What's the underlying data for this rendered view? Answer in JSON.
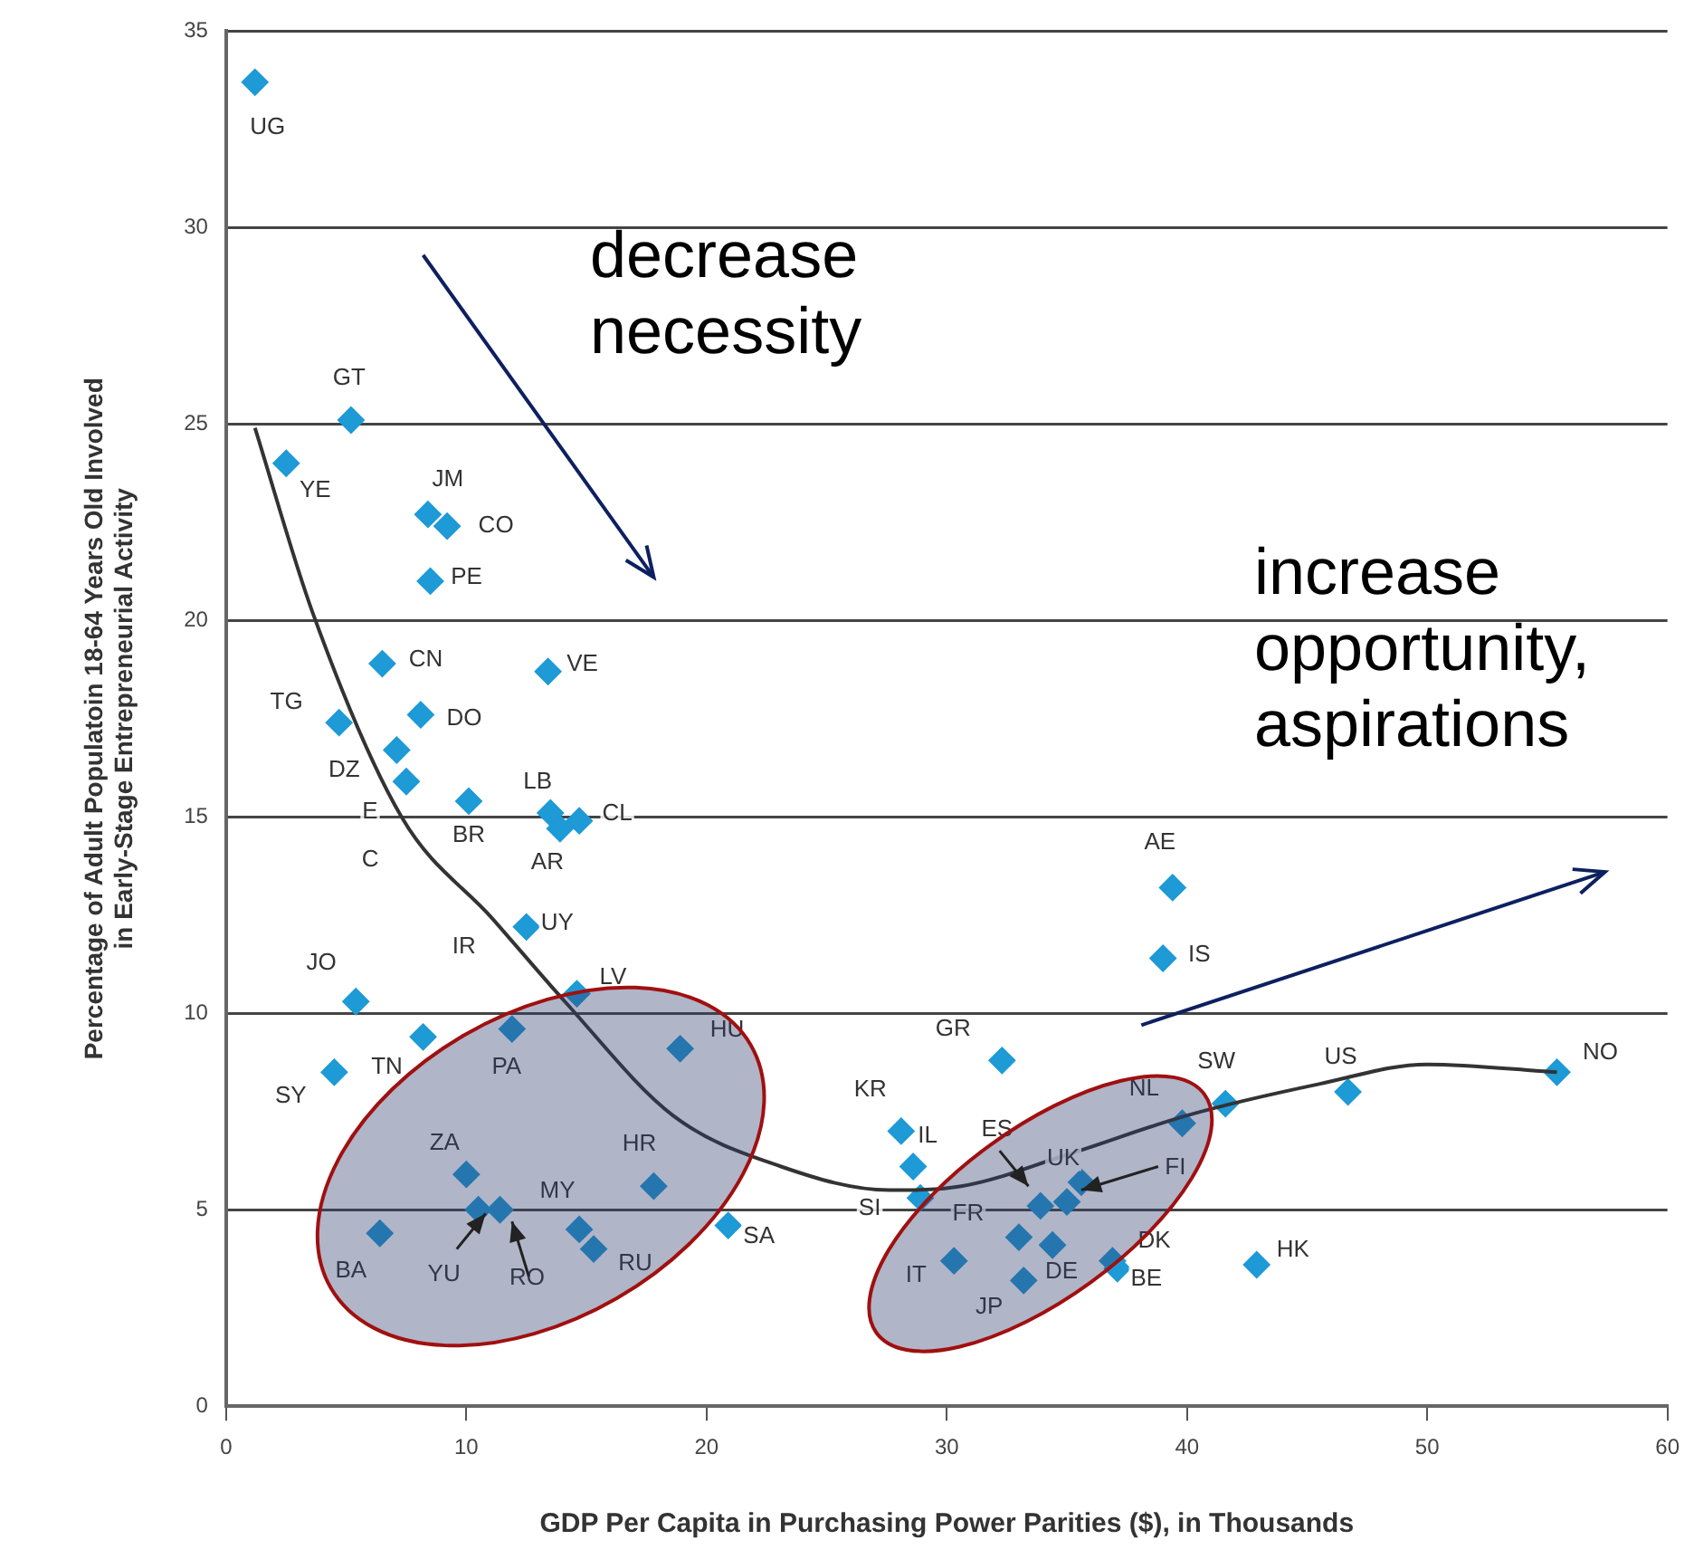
{
  "chart_data": {
    "type": "scatter",
    "xlabel": "GDP Per Capita in Purchasing Power Parities ($), in Thousands",
    "ylabel": "Percentage of Adult Populatoin 18-64 Years Old Involved in Early-Stage Entrepreneurial Activity",
    "xlim": [
      0,
      60
    ],
    "xticks": [
      0,
      10,
      20,
      30,
      40,
      50,
      60
    ],
    "ylim": [
      0,
      35
    ],
    "yticks": [
      0,
      5,
      10,
      15,
      20,
      25,
      30,
      35
    ],
    "grid": "y",
    "marker": "diamond",
    "series": [
      {
        "type": "scatter",
        "color": "#1e9ad6",
        "x": [
          1.2,
          5.2,
          2.5,
          8.4,
          9.2,
          8.5,
          6.5,
          13.4,
          4.7,
          8.1,
          7.1,
          7.5,
          10.1,
          13.5,
          13.9,
          14.7,
          12.5,
          14.6,
          5.4,
          8.2,
          11.9,
          18.9,
          4.5,
          10.0,
          10.5,
          11.4,
          6.4,
          14.7,
          15.3,
          17.8,
          20.9,
          39.4,
          39.0,
          32.3,
          28.1,
          28.6,
          28.9,
          39.8,
          41.6,
          46.7,
          55.4,
          33.9,
          35.0,
          35.6,
          33.0,
          34.4,
          30.3,
          33.2,
          36.9,
          37.1,
          42.9
        ],
        "values": [
          33.7,
          25.1,
          24.0,
          22.7,
          22.4,
          21.0,
          18.9,
          18.7,
          17.4,
          17.6,
          16.7,
          15.9,
          15.4,
          15.1,
          14.7,
          14.9,
          12.2,
          10.5,
          10.3,
          9.4,
          9.6,
          9.1,
          8.5,
          5.9,
          5.0,
          5.0,
          4.4,
          4.5,
          4.0,
          5.6,
          4.6,
          13.2,
          11.4,
          8.8,
          7.0,
          6.1,
          5.3,
          7.2,
          7.7,
          8.0,
          8.5,
          5.1,
          5.2,
          5.7,
          4.3,
          4.1,
          3.7,
          3.2,
          3.7,
          3.5,
          3.6
        ],
        "value_labels": [
          "UG",
          "GT",
          "YE",
          "JM",
          "CO",
          "PE",
          "CN",
          "VE",
          "TG",
          "DO",
          "DZ",
          "E",
          "BR",
          "LB",
          "AR",
          "CL",
          "UY",
          "LV",
          "JO",
          "TN",
          "PA",
          "HU",
          "SY",
          "ZA",
          "YU",
          "RO",
          "BA",
          "MY",
          "RU",
          "HR",
          "SA",
          "AE",
          "IS",
          "GR",
          "KR",
          "IL",
          "SI",
          "NL",
          "SW",
          "US",
          "NO",
          "ES",
          "UK",
          "FI",
          "FR",
          "DE",
          "IT",
          "JP",
          "DK",
          "BE",
          "HK"
        ]
      },
      {
        "type": "line",
        "color": "#333333",
        "marker": "none",
        "x": [
          1.2,
          3.6,
          7.3,
          11.1,
          14.1,
          18.6,
          23.1,
          27.6,
          30.6,
          35.0,
          40.0,
          45.5,
          50.0,
          55.4
        ],
        "values": [
          24.9,
          20.2,
          15.0,
          12.4,
          10.3,
          7.4,
          6.1,
          5.5,
          5.6,
          6.4,
          7.4,
          8.2,
          8.7,
          8.5
        ]
      }
    ],
    "annotations": [
      "decrease necessity",
      "increase opportunity, aspirations",
      "C",
      "IR"
    ]
  }
}
